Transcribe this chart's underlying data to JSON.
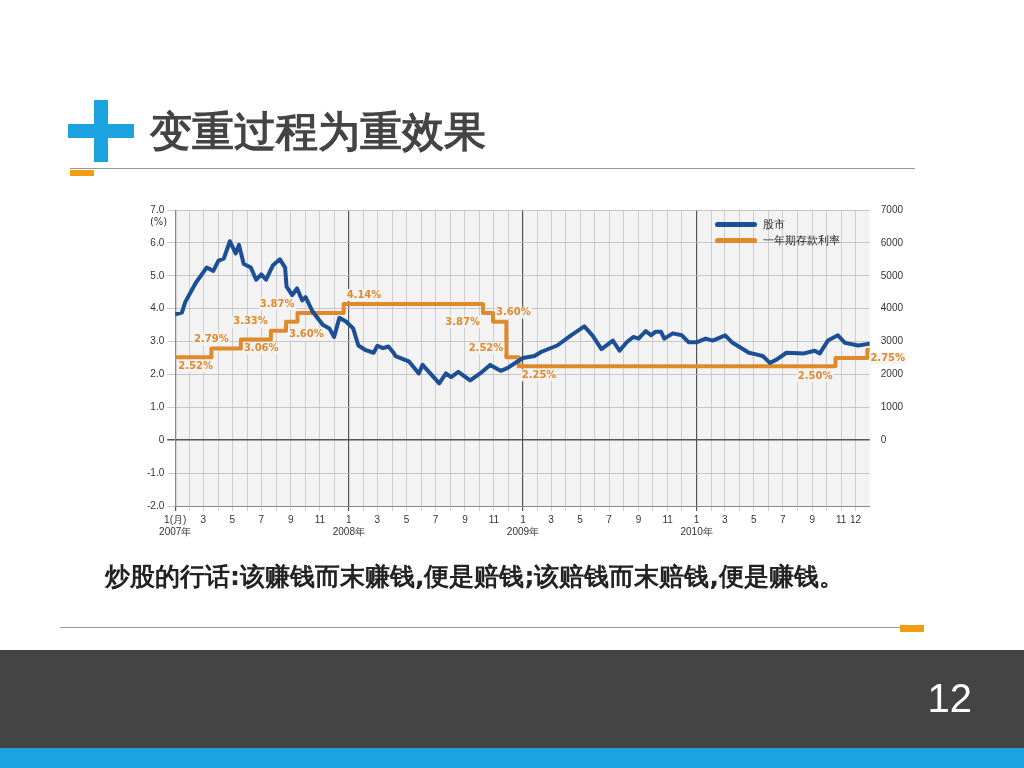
{
  "chart_data": {
    "type": "line",
    "title": "变重过程为重效果",
    "ylabel": "(%)",
    "annotations": [
      "炒股的行话:该赚钱而末赚钱,便是赔钱;该赔钱而末赔钱,便是赚钱。",
      "12"
    ],
    "xlim": [
      "2007-01-01",
      "2010-12-31"
    ],
    "xticks": [
      {
        "value": "2007-01",
        "label": "1(月)\n2007年"
      },
      {
        "value": "2007-02",
        "label": null
      },
      {
        "value": "2007-03",
        "label": "3"
      },
      {
        "value": "2007-04",
        "label": null
      },
      {
        "value": "2007-05",
        "label": "5"
      },
      {
        "value": "2007-06",
        "label": null
      },
      {
        "value": "2007-07",
        "label": "7"
      },
      {
        "value": "2007-08",
        "label": null
      },
      {
        "value": "2007-09",
        "label": "9"
      },
      {
        "value": "2007-10",
        "label": null
      },
      {
        "value": "2007-11",
        "label": "11"
      },
      {
        "value": "2007-12",
        "label": null
      },
      {
        "value": "2008-01",
        "label": "1\n2008年"
      },
      {
        "value": "2008-02",
        "label": null
      },
      {
        "value": "2008-03",
        "label": "3"
      },
      {
        "value": "2008-04",
        "label": null
      },
      {
        "value": "2008-05",
        "label": "5"
      },
      {
        "value": "2008-06",
        "label": null
      },
      {
        "value": "2008-07",
        "label": "7"
      },
      {
        "value": "2008-08",
        "label": null
      },
      {
        "value": "2008-09",
        "label": "9"
      },
      {
        "value": "2008-10",
        "label": null
      },
      {
        "value": "2008-11",
        "label": "11"
      },
      {
        "value": "2008-12",
        "label": null
      },
      {
        "value": "2009-01",
        "label": "1\n2009年"
      },
      {
        "value": "2009-02",
        "label": null
      },
      {
        "value": "2009-03",
        "label": "3"
      },
      {
        "value": "2009-04",
        "label": null
      },
      {
        "value": "2009-05",
        "label": "5"
      },
      {
        "value": "2009-06",
        "label": null
      },
      {
        "value": "2009-07",
        "label": "7"
      },
      {
        "value": "2009-08",
        "label": null
      },
      {
        "value": "2009-09",
        "label": "9"
      },
      {
        "value": "2009-10",
        "label": null
      },
      {
        "value": "2009-11",
        "label": "11"
      },
      {
        "value": "2009-12",
        "label": null
      },
      {
        "value": "2010-01",
        "label": "1\n2010年"
      },
      {
        "value": "2010-02",
        "label": null
      },
      {
        "value": "2010-03",
        "label": "3"
      },
      {
        "value": "2010-04",
        "label": null
      },
      {
        "value": "2010-05",
        "label": "5"
      },
      {
        "value": "2010-06",
        "label": null
      },
      {
        "value": "2010-07",
        "label": "7"
      },
      {
        "value": "2010-08",
        "label": null
      },
      {
        "value": "2010-09",
        "label": "9"
      },
      {
        "value": "2010-10",
        "label": null
      },
      {
        "value": "2010-11",
        "label": "11"
      },
      {
        "value": "2010-12",
        "label": "12"
      }
    ],
    "ylim": [
      -2,
      7
    ],
    "yticks": [
      {
        "value": -2,
        "label": "-2.0"
      },
      {
        "value": -1,
        "label": "-1.0"
      },
      0,
      {
        "value": 1,
        "label": "1.0"
      },
      {
        "value": 2,
        "label": "2.0"
      },
      {
        "value": 3,
        "label": "3.0"
      },
      {
        "value": 4,
        "label": "4.0"
      },
      {
        "value": 5,
        "label": "5.0"
      },
      {
        "value": 6,
        "label": "6.0"
      },
      {
        "value": 7,
        "label": "7.0"
      }
    ],
    "y2lim": [
      -2000,
      7000
    ],
    "y2ticks": [
      0,
      1000,
      2000,
      3000,
      4000,
      5000,
      6000,
      7000
    ],
    "grid": true,
    "legend": "top right",
    "marker": "none",
    "line_style": "solid",
    "series": [
      {
        "name": "股市",
        "type": "line",
        "axis": "y2",
        "color": "#1c4f96",
        "x": [
          "2007-01-01",
          "2007-01-15",
          "2007-01-22",
          "2007-02-13",
          "2007-03-08",
          "2007-03-22",
          "2007-04-02",
          "2007-04-13",
          "2007-04-26",
          "2007-05-08",
          "2007-05-15",
          "2007-05-25",
          "2007-06-09",
          "2007-06-20",
          "2007-07-01",
          "2007-07-11",
          "2007-07-25",
          "2007-08-09",
          "2007-08-20",
          "2007-08-23",
          "2007-09-04",
          "2007-09-14",
          "2007-09-25",
          "2007-10-02",
          "2007-10-16",
          "2007-11-07",
          "2007-11-21",
          "2007-12-01",
          "2007-12-12",
          "2007-12-26",
          "2008-01-10",
          "2008-01-21",
          "2008-02-04",
          "2008-02-22",
          "2008-03-01",
          "2008-03-13",
          "2008-03-24",
          "2008-04-04",
          "2008-04-08",
          "2008-05-06",
          "2008-05-27",
          "2008-06-04",
          "2008-07-09",
          "2008-07-23",
          "2008-08-03",
          "2008-08-18",
          "2008-09-12",
          "2008-10-03",
          "2008-10-24",
          "2008-11-15",
          "2008-11-29",
          "2009-01-01",
          "2009-01-25",
          "2009-02-09",
          "2009-03-14",
          "2009-04-12",
          "2009-05-10",
          "2009-05-27",
          "2009-06-15",
          "2009-07-09",
          "2009-07-23",
          "2009-08-07",
          "2009-08-21",
          "2009-09-01",
          "2009-09-16",
          "2009-09-27",
          "2009-10-07",
          "2009-10-18",
          "2009-10-25",
          "2009-11-12",
          "2009-12-01",
          "2009-12-15",
          "2010-01-02",
          "2010-01-20",
          "2010-02-04",
          "2010-03-02",
          "2010-03-16",
          "2010-04-21",
          "2010-05-06",
          "2010-05-20",
          "2010-06-04",
          "2010-06-18",
          "2010-07-09",
          "2010-08-15",
          "2010-09-06",
          "2010-09-17",
          "2010-10-04",
          "2010-10-25",
          "2010-11-09",
          "2010-12-07",
          "2010-12-28"
        ],
        "values": [
          3830,
          3880,
          4200,
          4780,
          5250,
          5150,
          5460,
          5520,
          6050,
          5680,
          5940,
          5360,
          5250,
          4880,
          5040,
          4880,
          5310,
          5500,
          5250,
          4670,
          4410,
          4620,
          4250,
          4350,
          3930,
          3510,
          3400,
          3140,
          3720,
          3610,
          3400,
          2880,
          2750,
          2660,
          2870,
          2800,
          2850,
          2660,
          2560,
          2400,
          2030,
          2290,
          1730,
          2030,
          1920,
          2080,
          1820,
          2030,
          2290,
          2110,
          2190,
          2500,
          2560,
          2690,
          2880,
          3190,
          3460,
          3190,
          2770,
          3030,
          2720,
          2980,
          3140,
          3090,
          3320,
          3190,
          3300,
          3300,
          3090,
          3250,
          3190,
          2980,
          2980,
          3090,
          3030,
          3190,
          2980,
          2660,
          2610,
          2560,
          2350,
          2450,
          2660,
          2640,
          2720,
          2640,
          3030,
          3190,
          2960,
          2880,
          2930
        ]
      },
      {
        "name": "一年期存款利率",
        "type": "step",
        "axis": "y",
        "color": "#e08a2c",
        "x": [
          "2007-01-01",
          "2007-03-18",
          "2007-05-19",
          "2007-07-21",
          "2007-08-22",
          "2007-09-15",
          "2007-12-21",
          "2008-10-09",
          "2008-10-30",
          "2008-11-27",
          "2008-12-23",
          "2010-10-20",
          "2010-12-26",
          "2010-12-31"
        ],
        "values": [
          2.52,
          2.79,
          3.06,
          3.33,
          3.6,
          3.87,
          4.14,
          3.87,
          3.6,
          2.52,
          2.25,
          2.5,
          2.75,
          2.75
        ],
        "value_labels": [
          "2.52%",
          "2.79%",
          "3.06%",
          "3.33%",
          "3.60%",
          "3.87%",
          "4.14%",
          "3.87%",
          "3.60%",
          "2.52%",
          "2.25%",
          "2.50%",
          "2.75%",
          null
        ]
      }
    ]
  }
}
